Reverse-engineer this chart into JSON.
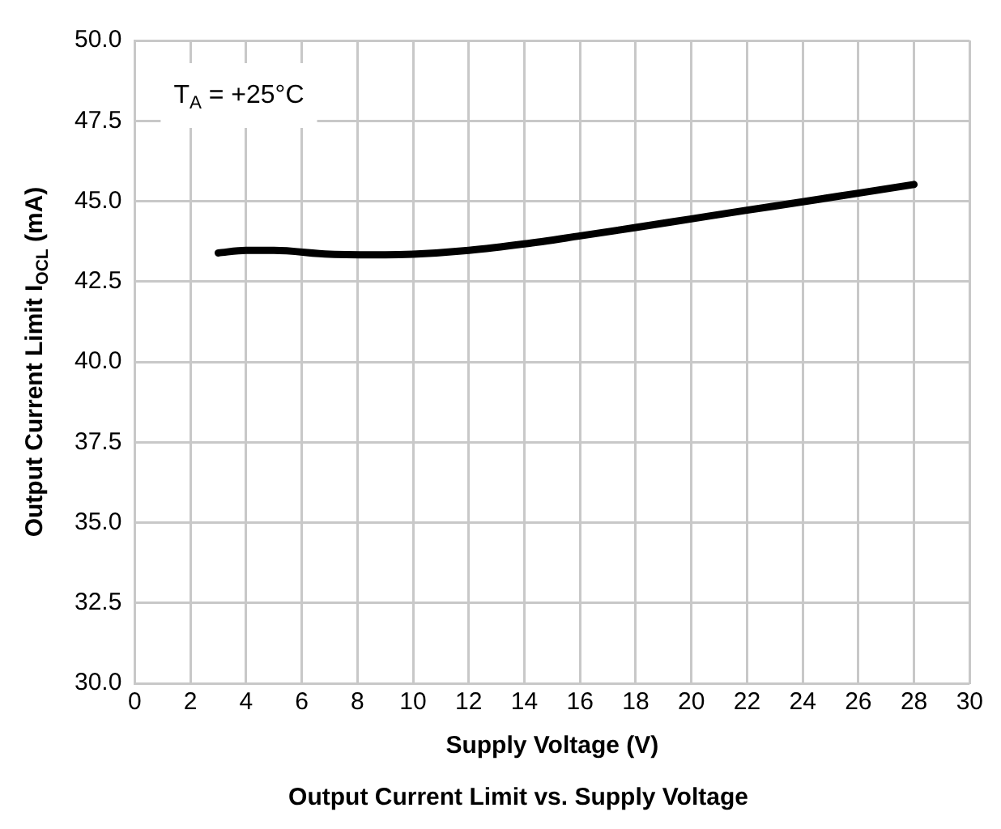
{
  "chart_data": {
    "type": "line",
    "title": "Output Current Limit vs. Supply Voltage",
    "xlabel": "Supply Voltage (V)",
    "ylabel": "Output Current Limit I$_{OCL}$ (mA)",
    "annotations": [
      "T$_{A}$ = +25°C"
    ],
    "series": [
      {
        "color": "#000000",
        "x": [
          3,
          4,
          5,
          7,
          9,
          10,
          12,
          14,
          16,
          18,
          20,
          22,
          24,
          26,
          28
        ],
        "values": [
          43.39,
          43.47,
          43.47,
          43.35,
          43.33,
          43.35,
          43.47,
          43.67,
          43.92,
          44.18,
          44.45,
          44.72,
          44.98,
          45.25,
          45.52
        ]
      }
    ],
    "xlim": [
      0,
      30
    ],
    "xticks": [
      0,
      2,
      4,
      6,
      8,
      10,
      12,
      14,
      16,
      18,
      20,
      22,
      24,
      26,
      28,
      30
    ],
    "ylim": [
      30,
      50
    ],
    "yticks": [
      {
        "value": 30,
        "label": "30.0"
      },
      {
        "value": 32.5,
        "label": "32.5"
      },
      {
        "value": 35,
        "label": "35.0"
      },
      {
        "value": 37.5,
        "label": "37.5"
      },
      {
        "value": 40,
        "label": "40.0"
      },
      {
        "value": 42.5,
        "label": "42.5"
      },
      {
        "value": 45,
        "label": "45.0"
      },
      {
        "value": 47.5,
        "label": "47.5"
      },
      {
        "value": 50,
        "label": "50.0"
      }
    ],
    "grid": true,
    "legend": false,
    "marker": "none",
    "line_style": "solid"
  }
}
